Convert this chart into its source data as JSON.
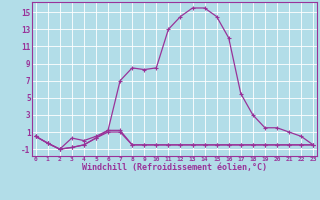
{
  "x": [
    0,
    1,
    2,
    3,
    4,
    5,
    6,
    7,
    8,
    9,
    10,
    11,
    12,
    13,
    14,
    15,
    16,
    17,
    18,
    19,
    20,
    21,
    22,
    23
  ],
  "line_main": [
    0.5,
    -0.3,
    -1.0,
    0.3,
    0.0,
    0.5,
    1.2,
    7.0,
    8.5,
    8.3,
    8.5,
    13.0,
    14.5,
    15.5,
    15.5,
    14.5,
    12.0,
    5.5,
    3.0,
    1.5,
    1.5,
    1.0,
    0.5,
    -0.5
  ],
  "line_flat1": [
    0.5,
    -0.3,
    -1.0,
    -0.8,
    -0.5,
    0.3,
    1.2,
    1.2,
    -0.5,
    -0.5,
    -0.5,
    -0.5,
    -0.5,
    -0.5,
    -0.5,
    -0.5,
    -0.5,
    -0.5,
    -0.5,
    -0.5,
    -0.5,
    -0.5,
    -0.5,
    -0.5
  ],
  "line_flat2": [
    0.5,
    -0.3,
    -1.0,
    -0.8,
    -0.5,
    0.3,
    1.0,
    1.0,
    -0.5,
    -0.5,
    -0.5,
    -0.5,
    -0.5,
    -0.5,
    -0.5,
    -0.5,
    -0.5,
    -0.5,
    -0.5,
    -0.5,
    -0.5,
    -0.5,
    -0.5,
    -0.5
  ],
  "line_color": "#993399",
  "bg_color": "#b2dde8",
  "grid_color": "#cccccc",
  "xlabel": "Windchill (Refroidissement éolien,°C)",
  "yticks": [
    -1,
    1,
    3,
    5,
    7,
    9,
    11,
    13,
    15
  ],
  "xticks": [
    0,
    1,
    2,
    3,
    4,
    5,
    6,
    7,
    8,
    9,
    10,
    11,
    12,
    13,
    14,
    15,
    16,
    17,
    18,
    19,
    20,
    21,
    22,
    23
  ],
  "ylim": [
    -1.8,
    16.2
  ],
  "xlim": [
    -0.3,
    23.3
  ]
}
